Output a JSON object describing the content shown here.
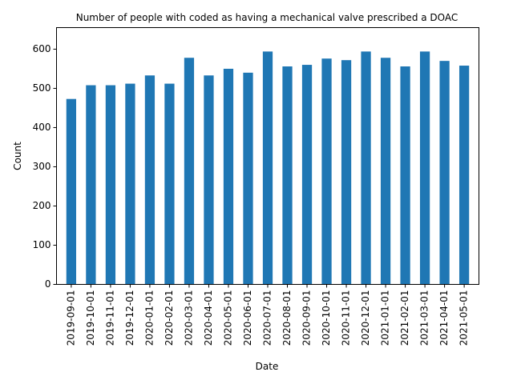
{
  "chart_data": {
    "type": "bar",
    "title": "Number of people with coded as having a mechanical valve prescribed a DOAC",
    "xlabel": "Date",
    "ylabel": "Count",
    "ylim": [
      0,
      655
    ],
    "yticks": [
      0,
      100,
      200,
      300,
      400,
      500,
      600
    ],
    "grid": false,
    "legend": "none",
    "bar_color": "#1f77b4",
    "categories": [
      "2019-09-01",
      "2019-10-01",
      "2019-11-01",
      "2019-12-01",
      "2020-01-01",
      "2020-02-01",
      "2020-03-01",
      "2020-04-01",
      "2020-05-01",
      "2020-06-01",
      "2020-07-01",
      "2020-08-01",
      "2020-09-01",
      "2020-10-01",
      "2020-11-01",
      "2020-12-01",
      "2021-01-01",
      "2021-02-01",
      "2021-03-01",
      "2021-04-01",
      "2021-05-01"
    ],
    "values": [
      473,
      508,
      508,
      512,
      533,
      512,
      578,
      533,
      550,
      540,
      594,
      556,
      560,
      576,
      572,
      594,
      578,
      556,
      594,
      570,
      558
    ]
  }
}
